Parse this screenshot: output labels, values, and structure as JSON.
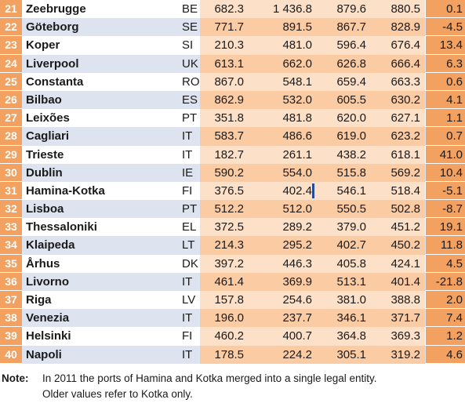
{
  "rows": [
    {
      "rank": "21",
      "port": "Zeebrugge",
      "country": "BE",
      "v1": "682.3",
      "v2": "1 436.8",
      "v3": "879.6",
      "v4": "880.5",
      "change": "0.1"
    },
    {
      "rank": "22",
      "port": "Göteborg",
      "country": "SE",
      "v1": "771.7",
      "v2": "891.5",
      "v3": "867.7",
      "v4": "828.9",
      "change": "-4.5"
    },
    {
      "rank": "23",
      "port": "Koper",
      "country": "SI",
      "v1": "210.3",
      "v2": "481.0",
      "v3": "596.4",
      "v4": "676.4",
      "change": "13.4"
    },
    {
      "rank": "24",
      "port": "Liverpool",
      "country": "UK",
      "v1": "613.1",
      "v2": "662.0",
      "v3": "626.8",
      "v4": "666.4",
      "change": "6.3"
    },
    {
      "rank": "25",
      "port": "Constanta",
      "country": "RO",
      "v1": "867.0",
      "v2": "548.1",
      "v3": "659.4",
      "v4": "663.3",
      "change": "0.6"
    },
    {
      "rank": "26",
      "port": "Bilbao",
      "country": "ES",
      "v1": "862.9",
      "v2": "532.0",
      "v3": "605.5",
      "v4": "630.2",
      "change": "4.1"
    },
    {
      "rank": "27",
      "port": "Leixões",
      "country": "PT",
      "v1": "351.8",
      "v2": "481.8",
      "v3": "620.0",
      "v4": "627.1",
      "change": "1.1"
    },
    {
      "rank": "28",
      "port": "Cagliari",
      "country": "IT",
      "v1": "583.7",
      "v2": "486.6",
      "v3": "619.0",
      "v4": "623.2",
      "change": "0.7"
    },
    {
      "rank": "29",
      "port": "Trieste",
      "country": "IT",
      "v1": "182.7",
      "v2": "261.1",
      "v3": "438.2",
      "v4": "618.1",
      "change": "41.0"
    },
    {
      "rank": "30",
      "port": "Dublin",
      "country": "IE",
      "v1": "590.2",
      "v2": "554.0",
      "v3": "515.8",
      "v4": "569.2",
      "change": "10.4"
    },
    {
      "rank": "31",
      "port": "Hamina-Kotka",
      "country": "FI",
      "v1": "376.5",
      "v2": "402.4",
      "v3": "546.1",
      "v4": "518.4",
      "change": "-5.1"
    },
    {
      "rank": "32",
      "port": "Lisboa",
      "country": "PT",
      "v1": "512.2",
      "v2": "512.0",
      "v3": "550.5",
      "v4": "502.8",
      "change": "-8.7"
    },
    {
      "rank": "33",
      "port": "Thessaloniki",
      "country": "EL",
      "v1": "372.5",
      "v2": "289.2",
      "v3": "379.0",
      "v4": "451.2",
      "change": "19.1"
    },
    {
      "rank": "34",
      "port": "Klaipeda",
      "country": "LT",
      "v1": "214.3",
      "v2": "295.2",
      "v3": "402.7",
      "v4": "450.2",
      "change": "11.8"
    },
    {
      "rank": "35",
      "port": "Århus",
      "country": "DK",
      "v1": "397.2",
      "v2": "446.3",
      "v3": "405.8",
      "v4": "424.1",
      "change": "4.5"
    },
    {
      "rank": "36",
      "port": "Livorno",
      "country": "IT",
      "v1": "461.4",
      "v2": "369.9",
      "v3": "513.1",
      "v4": "401.4",
      "change": "-21.8"
    },
    {
      "rank": "37",
      "port": "Riga",
      "country": "LV",
      "v1": "157.8",
      "v2": "254.6",
      "v3": "381.0",
      "v4": "388.8",
      "change": "2.0"
    },
    {
      "rank": "38",
      "port": "Venezia",
      "country": "IT",
      "v1": "196.0",
      "v2": "237.7",
      "v3": "346.1",
      "v4": "371.7",
      "change": "7.4"
    },
    {
      "rank": "39",
      "port": "Helsinki",
      "country": "FI",
      "v1": "460.2",
      "v2": "400.7",
      "v3": "364.8",
      "v4": "369.3",
      "change": "1.2"
    },
    {
      "rank": "40",
      "port": "Napoli",
      "country": "IT",
      "v1": "178.5",
      "v2": "224.2",
      "v3": "305.1",
      "v4": "319.2",
      "change": "4.6"
    }
  ],
  "note": {
    "label": "Note:",
    "line1": "In 2011 the ports of Hamina and Kotka merged into a single legal entity.",
    "line2": "Older values refer to Kotka only."
  },
  "colors": {
    "rank_bg": "#f3a161",
    "band_light": "#fde0c8",
    "band_dark": "#fbcba4",
    "row_stripe": "#dde4ef",
    "break_marker": "#1f4e9c"
  },
  "break_marker_row": 10
}
